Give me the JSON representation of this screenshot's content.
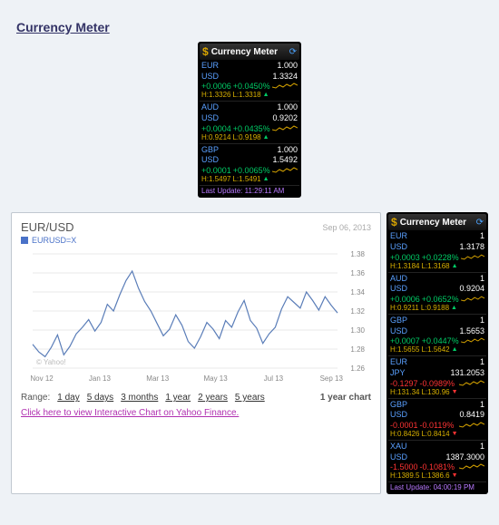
{
  "page_title": "Currency Meter",
  "top_widget": {
    "title": "Currency Meter",
    "last_update": "Last Update: 11:29:11 AM",
    "pairs": [
      {
        "base": "EUR",
        "base_val": "1.000",
        "quote": "USD",
        "quote_val": "1.3324",
        "delta": "+0.0006",
        "delta_pct": "+0.0450%",
        "dir": "pos",
        "hi": "H:1.3326",
        "lo": "L:1.3318"
      },
      {
        "base": "AUD",
        "base_val": "1.000",
        "quote": "USD",
        "quote_val": "0.9202",
        "delta": "+0.0004",
        "delta_pct": "+0.0435%",
        "dir": "pos",
        "hi": "H:0.9214",
        "lo": "L:0.9198"
      },
      {
        "base": "GBP",
        "base_val": "1.000",
        "quote": "USD",
        "quote_val": "1.5492",
        "delta": "+0.0001",
        "delta_pct": "+0.0065%",
        "dir": "pos",
        "hi": "H:1.5497",
        "lo": "L:1.5491"
      }
    ]
  },
  "right_widget": {
    "title": "Currency Meter",
    "last_update": "Last Update: 04:00:19 PM",
    "pairs": [
      {
        "base": "EUR",
        "base_val": "1",
        "quote": "USD",
        "quote_val": "1.3178",
        "delta": "+0.0003",
        "delta_pct": "+0.0228%",
        "dir": "pos",
        "hi": "H:1.3184",
        "lo": "L:1.3168"
      },
      {
        "base": "AUD",
        "base_val": "1",
        "quote": "USD",
        "quote_val": "0.9204",
        "delta": "+0.0006",
        "delta_pct": "+0.0652%",
        "dir": "pos",
        "hi": "H:0.9211",
        "lo": "L:0.9188"
      },
      {
        "base": "GBP",
        "base_val": "1",
        "quote": "USD",
        "quote_val": "1.5653",
        "delta": "+0.0007",
        "delta_pct": "+0.0447%",
        "dir": "pos",
        "hi": "H:1.5655",
        "lo": "L:1.5642"
      },
      {
        "base": "EUR",
        "base_val": "1",
        "quote": "JPY",
        "quote_val": "131.2053",
        "delta": "-0.1297",
        "delta_pct": "-0.0989%",
        "dir": "neg",
        "hi": "H:131.34",
        "lo": "L:130.96"
      },
      {
        "base": "GBP",
        "base_val": "1",
        "quote": "USD",
        "quote_val": "0.8419",
        "delta": "-0.0001",
        "delta_pct": "-0.0119%",
        "dir": "neg",
        "hi": "H:0.8426",
        "lo": "L:0.8414"
      },
      {
        "base": "XAU",
        "base_val": "1",
        "quote": "USD",
        "quote_val": "1387.3000",
        "delta": "-1.5000",
        "delta_pct": "-0.1081%",
        "dir": "neg",
        "hi": "H:1389.5",
        "lo": "L:1386.6"
      }
    ]
  },
  "chart": {
    "title": "EUR/USD",
    "ticker": "EURUSD=X",
    "date": "Sep 06, 2013",
    "yahoo_copy": "© Yahoo!",
    "range_label": "Range:",
    "ranges": [
      "1 day",
      "5 days",
      "3 months",
      "1 year",
      "2 years",
      "5 years"
    ],
    "current_range": "1 year chart",
    "link_text": "Click here to view Interactive Chart on Yahoo Finance.",
    "type": "line",
    "line_color": "#5a7db8",
    "grid_color": "#e8e8e8",
    "text_color": "#888",
    "background_color": "#ffffff",
    "ylim": [
      1.26,
      1.38
    ],
    "ytick_step": 0.02,
    "xticks": [
      "Nov 12",
      "Jan 13",
      "Mar 13",
      "May 13",
      "Jul 13",
      "Sep 13"
    ],
    "series": [
      1.285,
      1.277,
      1.272,
      1.282,
      1.295,
      1.274,
      1.283,
      1.296,
      1.303,
      1.311,
      1.299,
      1.308,
      1.327,
      1.32,
      1.337,
      1.352,
      1.362,
      1.344,
      1.33,
      1.32,
      1.307,
      1.294,
      1.301,
      1.316,
      1.305,
      1.288,
      1.281,
      1.293,
      1.308,
      1.301,
      1.291,
      1.31,
      1.303,
      1.319,
      1.331,
      1.31,
      1.302,
      1.286,
      1.296,
      1.303,
      1.322,
      1.335,
      1.329,
      1.323,
      1.34,
      1.331,
      1.321,
      1.335,
      1.326,
      1.318
    ]
  }
}
